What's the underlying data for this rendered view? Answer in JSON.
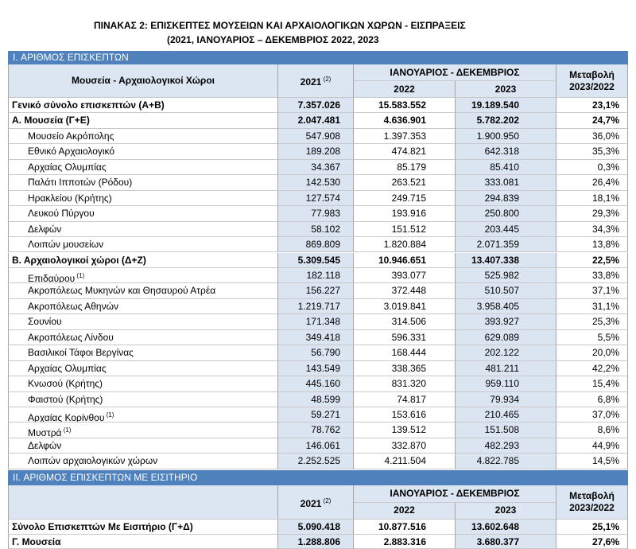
{
  "title": {
    "line1": "ΠΙΝΑΚΑΣ 2: ΕΠΙΣΚΕΠΤΕΣ ΜΟΥΣΕΙΩΝ ΚΑΙ ΑΡΧΑΙΟΛΟΓΙΚΩΝ ΧΩΡΩΝ - ΕΙΣΠΡΑΞΕΙΣ",
    "line2": "(2021, ΙΑΝΟΥΑΡΙΟΣ – ΔΕΚΕΜΒΡΙΟΣ 2022, 2023"
  },
  "sections": [
    {
      "heading": "I. ΑΡΙΘΜΟΣ  ΕΠΙΣΚΕΠΤΩΝ",
      "header": {
        "label": "Μουσεία - Αρχαιολογικοί Χώροι",
        "col2021": "2021",
        "col2021_note": "(2)",
        "period": "ΙΑΝΟΥΑΡΙΟΣ - ΔΕΚΕΜΒΡΙΟΣ",
        "col2022": "2022",
        "col2023": "2023",
        "change1": "Μεταβολή",
        "change2": "2023/2022"
      },
      "rows": [
        {
          "bold": true,
          "cells": [
            "Γενικό  σύνολο επισκεπτών (Α+Β)",
            "7.357.026",
            "15.583.552",
            "19.189.540",
            "23,1%"
          ]
        },
        {
          "bold": true,
          "cells": [
            "Α. Μουσεία (Γ+Ε)",
            "2.047.481",
            "4.636.901",
            "5.782.202",
            "24,7%"
          ]
        },
        {
          "cells": [
            "Μουσείο Ακρόπολης",
            "547.908",
            "1.397.353",
            "1.900.950",
            "36,0%"
          ]
        },
        {
          "cells": [
            "Εθνικό Αρχαιολογικό",
            "189.208",
            "474.821",
            "642.318",
            "35,3%"
          ]
        },
        {
          "cells": [
            "Αρχαίας Ολυμπίας",
            "34.367",
            "85.179",
            "85.410",
            "0,3%"
          ]
        },
        {
          "cells": [
            "Παλάτι Ιπποτών (Ρόδου)",
            "142.530",
            "263.521",
            "333.081",
            "26,4%"
          ]
        },
        {
          "cells": [
            "Ηρακλείου (Κρήτης)",
            "127.574",
            "249.715",
            "294.839",
            "18,1%"
          ]
        },
        {
          "cells": [
            "Λευκού Πύργου",
            "77.983",
            "193.916",
            "250.800",
            "29,3%"
          ]
        },
        {
          "cells": [
            "Δελφών",
            "58.102",
            "151.512",
            "203.445",
            "34,3%"
          ]
        },
        {
          "cells": [
            "Λοιπών μουσείων",
            "869.809",
            "1.820.884",
            "2.071.359",
            "13,8%"
          ]
        },
        {
          "bold": true,
          "cells": [
            "Β. Αρχαιολογικοί χώροι (Δ+Ζ)",
            "5.309.545",
            "10.946.651",
            "13.407.338",
            "22,5%"
          ]
        },
        {
          "note": "(1)",
          "cells": [
            "Επιδαύρου",
            "182.118",
            "393.077",
            "525.982",
            "33,8%"
          ]
        },
        {
          "cells": [
            "Ακροπόλεως Μυκηνών και Θησαυρού Ατρέα",
            "156.227",
            "372.448",
            "510.507",
            "37,1%"
          ]
        },
        {
          "cells": [
            "Ακροπόλεως Αθηνών",
            "1.219.717",
            "3.019.841",
            "3.958.405",
            "31,1%"
          ]
        },
        {
          "cells": [
            "Σουνίου",
            "171.348",
            "314.506",
            "393.927",
            "25,3%"
          ]
        },
        {
          "cells": [
            "Ακροπόλεως Λίνδου",
            "349.418",
            "596.331",
            "629.089",
            "5,5%"
          ]
        },
        {
          "cells": [
            "Βασιλικοί Τάφοι Βεργίνας",
            "56.790",
            "168.444",
            "202.122",
            "20,0%"
          ]
        },
        {
          "cells": [
            "Αρχαίας Ολυμπίας",
            "143.549",
            "338.365",
            "481.211",
            "42,2%"
          ]
        },
        {
          "cells": [
            "Κνωσού (Κρήτης)",
            "445.160",
            "831.320",
            "959.110",
            "15,4%"
          ]
        },
        {
          "cells": [
            "Φαιστού (Κρήτης)",
            "48.599",
            "74.817",
            "79.934",
            "6,8%"
          ]
        },
        {
          "note": "(1)",
          "cells": [
            "Αρχαίας Κορίνθου",
            "59.271",
            "153.616",
            "210.465",
            "37,0%"
          ]
        },
        {
          "note": "(1)",
          "cells": [
            "Μυστρά",
            "78.762",
            "139.512",
            "151.508",
            "8,6%"
          ]
        },
        {
          "cells": [
            "Δελφών",
            "146.061",
            "332.870",
            "482.293",
            "44,9%"
          ]
        },
        {
          "cells": [
            "Λοιπών αρχαιολογικών χώρων",
            "2.252.525",
            "4.211.504",
            "4.822.785",
            "14,5%"
          ]
        }
      ]
    },
    {
      "heading": "II. ΑΡΙΘΜΟΣ ΕΠΙΣΚΕΠΤΩΝ ΜΕ ΕΙΣΙΤΗΡΙΟ",
      "header": {
        "col2021": "2021",
        "col2021_note": "(2)",
        "period": "ΙΑΝΟΥΑΡΙΟΣ - ΔΕΚΕΜΒΡΙΟΣ",
        "col2022": "2022",
        "col2023": "2023",
        "change1": "Μεταβολή",
        "change2": "2023/2022"
      },
      "rows": [
        {
          "bold": true,
          "cells": [
            "Σύνολο Επισκεπτών Με Εισιτήριο (Γ+Δ)",
            "5.090.418",
            "10.877.516",
            "13.602.648",
            "25,1%"
          ]
        },
        {
          "bold": true,
          "cells": [
            "Γ. Μουσεία",
            "1.288.806",
            "2.883.316",
            "3.680.377",
            "27,6%"
          ]
        }
      ]
    }
  ]
}
